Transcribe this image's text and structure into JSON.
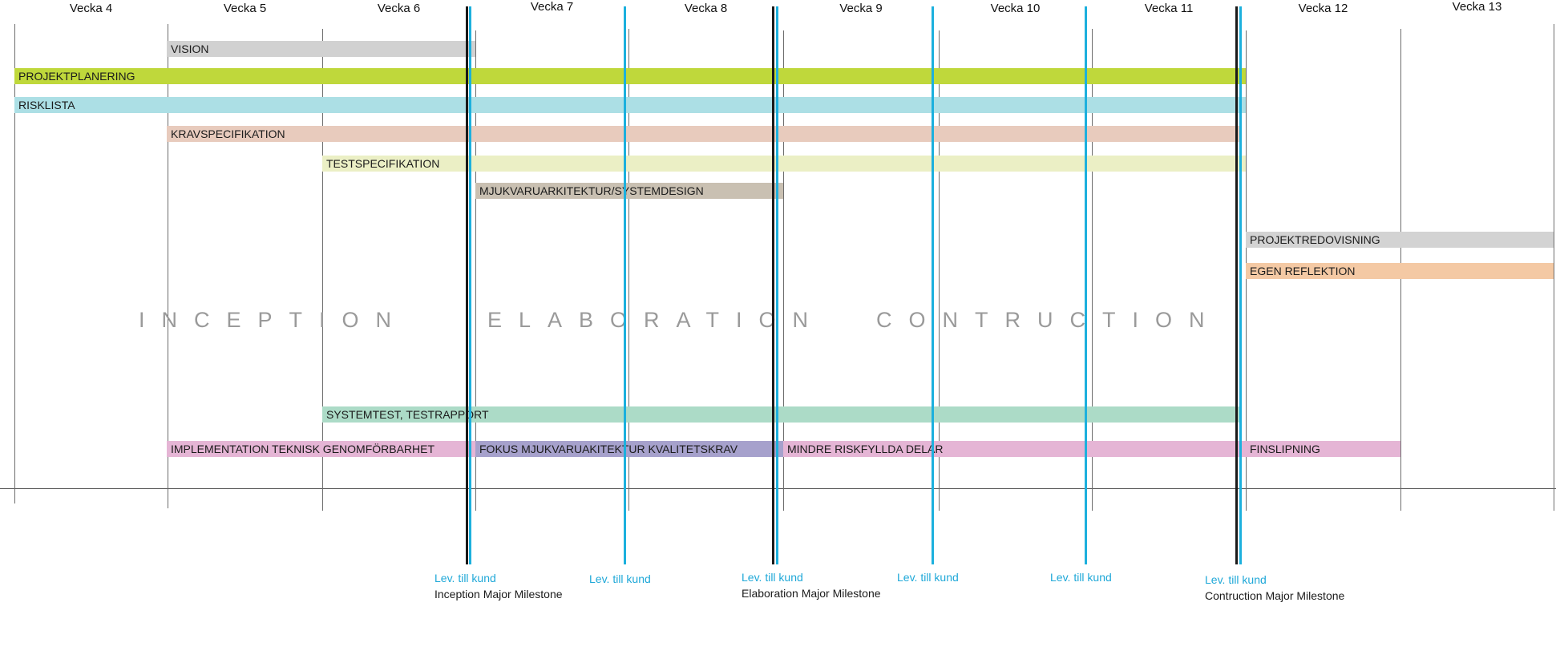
{
  "weeks": [
    "Vecka 4",
    "Vecka 5",
    "Vecka 6",
    "Vecka 7",
    "Vecka 8",
    "Vecka 9",
    "Vecka 10",
    "Vecka 11",
    "Vecka 12",
    "Vecka 13"
  ],
  "bars": [
    {
      "label": "VISION",
      "start_week": "Vecka 5",
      "end_week": "Vecka 6",
      "color": "#d1d1d1"
    },
    {
      "label": "PROJEKTPLANERING",
      "start_week": "Vecka 4",
      "end_week": "Vecka 11",
      "color": "#bfd83b"
    },
    {
      "label": "RISKLISTA",
      "start_week": "Vecka 4",
      "end_week": "Vecka 11",
      "color": "#acdfe5"
    },
    {
      "label": "KRAVSPECIFIKATION",
      "start_week": "Vecka 5",
      "end_week": "Vecka 11",
      "color": "#e8cbbd"
    },
    {
      "label": "TESTSPECIFIKATION",
      "start_week": "Vecka 6",
      "end_week": "Vecka 11",
      "color": "#ebefc5"
    },
    {
      "label": "MJUKVARUARKITEKTUR/SYSTEMDESIGN",
      "start_week": "Vecka 7",
      "end_week": "Vecka 8",
      "color": "#c9c0b2"
    },
    {
      "label": "PROJEKTREDOVISNING",
      "start_week": "Vecka 12",
      "end_week": "Vecka 13",
      "color": "#d3d3d3"
    },
    {
      "label": "EGEN REFLEKTION",
      "start_week": "Vecka 12",
      "end_week": "Vecka 13",
      "color": "#f4c9a4"
    },
    {
      "label": "SYSTEMTEST, TESTRAPPORT",
      "start_week": "Vecka 6",
      "end_week": "Vecka 11",
      "color": "#acdbc7"
    },
    {
      "label": "IMPLEMENTATION   TEKNISK GENOMFÖRBARHET",
      "start_week": "Vecka 5",
      "end_week": "Vecka 6",
      "color": "#e5b5d5"
    },
    {
      "label": "FOKUS MJUKVARUAKITEKTUR KVALITETSKRAV",
      "start_week": "Vecka 7",
      "end_week": "Vecka 8",
      "color": "#a6a1cc"
    },
    {
      "label": "MINDRE RISKFYLLDA DELAR",
      "start_week": "Vecka 9",
      "end_week": "Vecka 11",
      "color": "#e5b5d5"
    },
    {
      "label": "FINSLIPNING",
      "start_week": "Vecka 12",
      "end_week": "Vecka 12",
      "color": "#e5b5d5"
    }
  ],
  "phases": [
    "INCEPTION",
    "ELABORATION",
    "CONTRUCTION"
  ],
  "deliveries": [
    {
      "label": "Lev. till kund",
      "milestone": "Inception Major Milestone"
    },
    {
      "label": "Lev. till kund",
      "milestone": ""
    },
    {
      "label": "Lev. till kund",
      "milestone": "Elaboration Major Milestone"
    },
    {
      "label": "Lev. till kund",
      "milestone": ""
    },
    {
      "label": "Lev. till kund",
      "milestone": ""
    },
    {
      "label": "Lev. till kund",
      "milestone": "Contruction Major Milestone"
    }
  ]
}
